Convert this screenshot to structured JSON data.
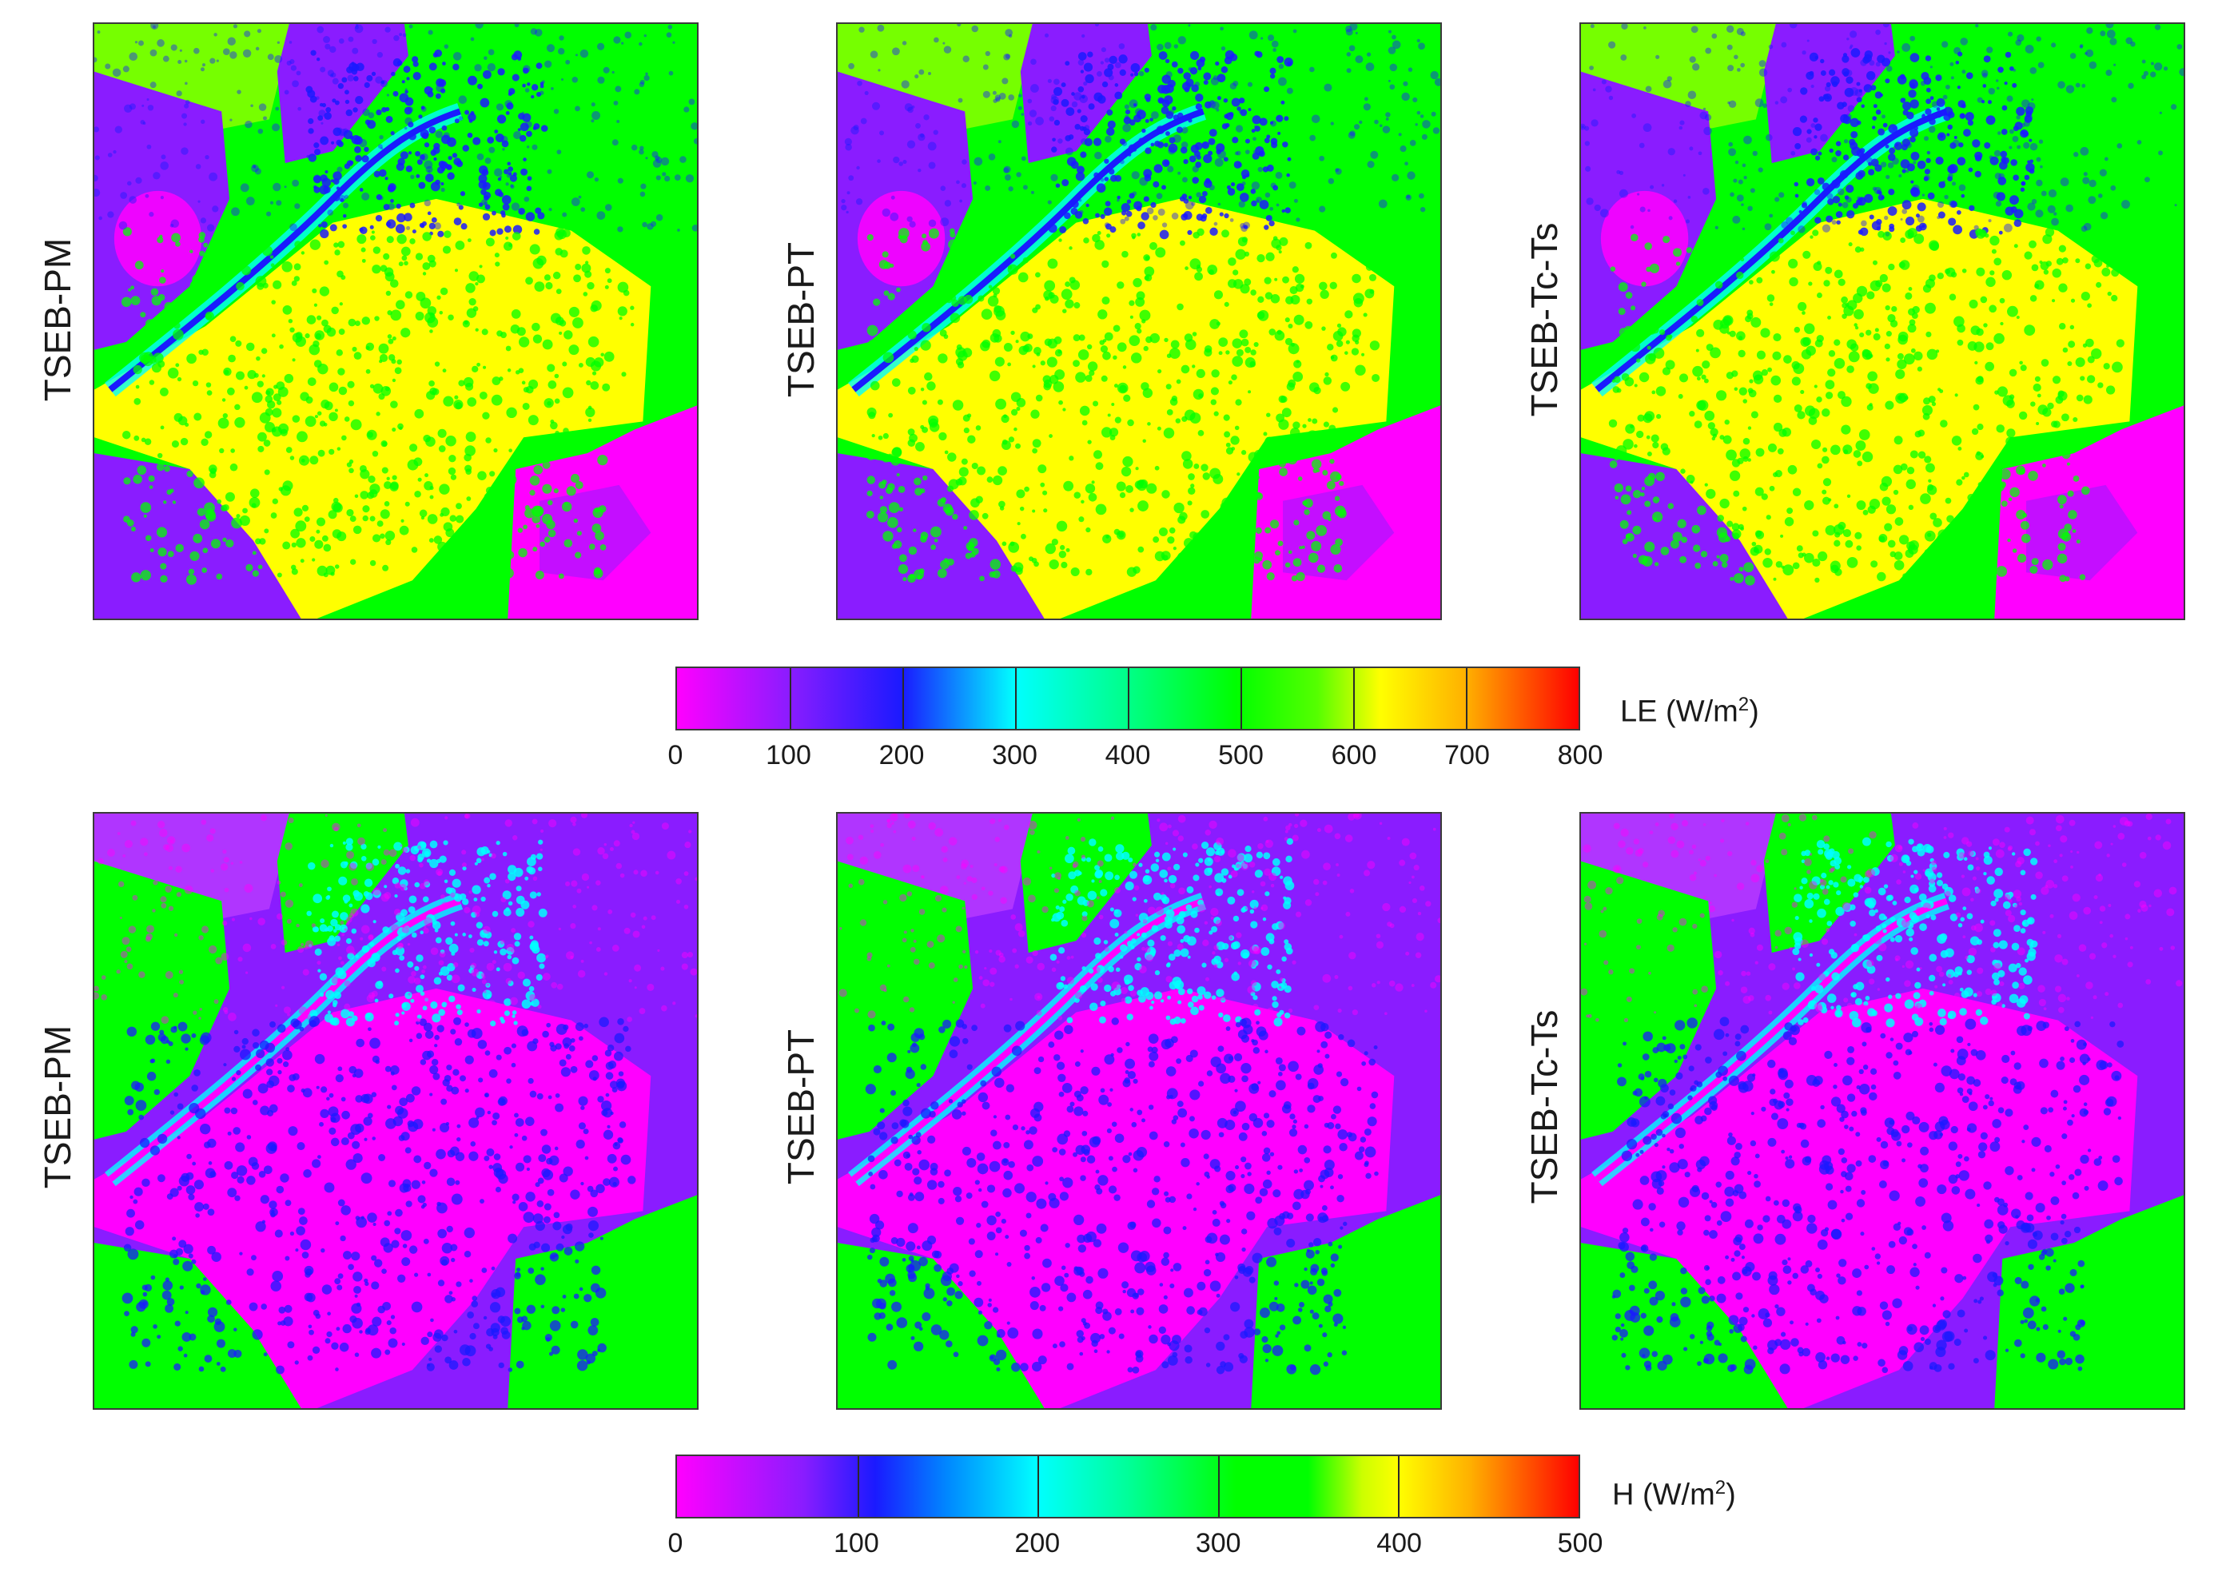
{
  "rows": [
    {
      "panels": [
        {
          "label": "TSEB-PM"
        },
        {
          "label": "TSEB-PT"
        },
        {
          "label": "TSEB-Tc-Ts"
        }
      ],
      "colorbar": {
        "quantity": "LE",
        "unit_prefix": "(W/m",
        "unit_exp": "2",
        "unit_suffix": ")",
        "min": 0,
        "max": 800,
        "ticks": [
          "0",
          "100",
          "200",
          "300",
          "400",
          "500",
          "600",
          "700",
          "800"
        ]
      }
    },
    {
      "panels": [
        {
          "label": "TSEB-PM"
        },
        {
          "label": "TSEB-PT"
        },
        {
          "label": "TSEB-Tc-Ts"
        }
      ],
      "colorbar": {
        "quantity": "H",
        "unit_prefix": "(W/m",
        "unit_exp": "2",
        "unit_suffix": ")",
        "min": 0,
        "max": 500,
        "ticks": [
          "0",
          "100",
          "200",
          "300",
          "400",
          "500"
        ]
      }
    }
  ],
  "colors": {
    "magenta": "#ff00ff",
    "violet": "#8a1cff",
    "blue": "#1a1aff",
    "cyan": "#00ffff",
    "green": "#00ff00",
    "yellow": "#ffff00",
    "orange": "#ff9900",
    "red": "#ff0000"
  }
}
